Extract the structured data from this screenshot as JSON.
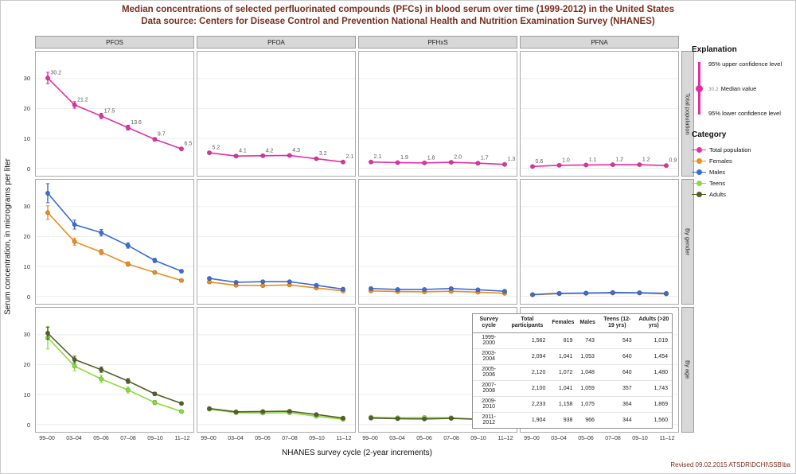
{
  "axes": {
    "y_label": "Serum concentration, in micrograms per liter",
    "x_label": "NHANES survey cycle (2-year increments)"
  },
  "footer": {
    "revised": "Revised 09.02.2015  ATSDR\\DCHI\\SSB\\ba"
  },
  "legend": {
    "title": "Explanation",
    "upper": "95% upper confidence level",
    "median": "Median value",
    "lower": "95% lower confidence level",
    "sample_value": "30.2",
    "category_title": "Category",
    "categories": [
      {
        "key": "total",
        "label": "Total population"
      },
      {
        "key": "females",
        "label": "Females"
      },
      {
        "key": "males",
        "label": "Males"
      },
      {
        "key": "teens",
        "label": "Teens"
      },
      {
        "key": "adults",
        "label": "Adults"
      }
    ]
  },
  "table": {
    "headers": [
      "Survey cycle",
      "Total participants",
      "Females",
      "Males",
      "Teens (12-19 yrs)",
      "Adults (>20 yrs)"
    ],
    "rows": [
      [
        "1999-2000",
        "1,562",
        "819",
        "743",
        "543",
        "1,019"
      ],
      [
        "2003-2004",
        "2,094",
        "1,041",
        "1,053",
        "640",
        "1,454"
      ],
      [
        "2005-2006",
        "2,120",
        "1,072",
        "1,048",
        "640",
        "1,480"
      ],
      [
        "2007-2008",
        "2,100",
        "1,041",
        "1,059",
        "357",
        "1,743"
      ],
      [
        "2009-2010",
        "2,233",
        "1,158",
        "1,075",
        "364",
        "1,869"
      ],
      [
        "2011-2012",
        "1,904",
        "938",
        "966",
        "344",
        "1,560"
      ]
    ]
  },
  "chart_data": {
    "type": "line",
    "title": "Median concentrations of selected perfluorinated compounds (PFCs) in blood serum over time (1999-2012) in the United States",
    "subtitle": "Data source: Centers for Disease Control and Prevention National Health and Nutrition Examination Survey (NHANES)",
    "xlabel": "NHANES survey cycle (2-year increments)",
    "ylabel": "Serum concentration, in micrograms per liter",
    "x": [
      "99–00",
      "03–04",
      "05–06",
      "07–08",
      "09–10",
      "11–12"
    ],
    "columns": [
      "PFOS",
      "PFOA",
      "PFHxS",
      "PFNA"
    ],
    "rows": [
      "Total population",
      "By gender",
      "By age"
    ],
    "ylim": [
      -2.5,
      39
    ],
    "yticks": [
      0,
      10,
      20,
      30
    ],
    "grid": "faint horizontal",
    "legend_position": "right",
    "colors": {
      "total": "#e62ea3",
      "females": "#ef8d1e",
      "males": "#3b6cd7",
      "teens": "#8bdd3d",
      "adults": "#535f28"
    },
    "panels": [
      {
        "row": "Total population",
        "col": "PFOS",
        "series": [
          {
            "key": "total",
            "name": "Total population",
            "values": [
              30.2,
              21.2,
              17.5,
              13.6,
              9.7,
              6.5
            ],
            "ci": [
              1.9,
              1.1,
              0.9,
              0.8,
              0.5,
              0.4
            ],
            "labels": [
              "30.2",
              "21.2",
              "17.5",
              "13.6",
              "9.7",
              "6.5"
            ]
          }
        ]
      },
      {
        "row": "Total population",
        "col": "PFOA",
        "series": [
          {
            "key": "total",
            "name": "Total population",
            "values": [
              5.2,
              4.1,
              4.2,
              4.3,
              3.2,
              2.1
            ],
            "ci": [
              0.3,
              0.2,
              0.2,
              0.2,
              0.2,
              0.1
            ],
            "labels": [
              "5.2",
              "4.1",
              "4.2",
              "4.3",
              "3.2",
              "2.1"
            ]
          }
        ]
      },
      {
        "row": "Total population",
        "col": "PFHxS",
        "series": [
          {
            "key": "total",
            "name": "Total population",
            "values": [
              2.1,
              1.9,
              1.8,
              2.0,
              1.7,
              1.3
            ],
            "ci": [
              0.2,
              0.15,
              0.15,
              0.2,
              0.1,
              0.1
            ],
            "labels": [
              "2.1",
              "1.9",
              "1.8",
              "2.0",
              "1.7",
              "1.3"
            ]
          }
        ]
      },
      {
        "row": "Total population",
        "col": "PFNA",
        "series": [
          {
            "key": "total",
            "name": "Total population",
            "values": [
              0.6,
              1.0,
              1.1,
              1.2,
              1.2,
              0.9
            ],
            "ci": [
              0.05,
              0.1,
              0.1,
              0.1,
              0.1,
              0.05
            ],
            "labels": [
              "0.6",
              "1.0",
              "1.1",
              "1.2",
              "1.2",
              "0.9"
            ]
          }
        ]
      },
      {
        "row": "By gender",
        "col": "PFOS",
        "series": [
          {
            "key": "females",
            "name": "Females",
            "values": [
              28.0,
              18.3,
              14.8,
              10.8,
              8.0,
              5.3
            ],
            "ci": [
              2.3,
              1.2,
              0.9,
              0.7,
              0.5,
              0.3
            ]
          },
          {
            "key": "males",
            "name": "Males",
            "values": [
              34.5,
              24.0,
              21.3,
              17.0,
              12.0,
              8.4
            ],
            "ci": [
              3.2,
              1.5,
              1.1,
              0.9,
              0.7,
              0.5
            ]
          }
        ]
      },
      {
        "row": "By gender",
        "col": "PFOA",
        "series": [
          {
            "key": "females",
            "name": "Females",
            "values": [
              4.8,
              3.7,
              3.6,
              3.8,
              2.8,
              1.8
            ],
            "ci": [
              0.3,
              0.2,
              0.2,
              0.2,
              0.2,
              0.1
            ]
          },
          {
            "key": "males",
            "name": "Males",
            "values": [
              6.0,
              4.7,
              4.9,
              4.9,
              3.7,
              2.4
            ],
            "ci": [
              0.4,
              0.25,
              0.25,
              0.25,
              0.2,
              0.15
            ]
          }
        ]
      },
      {
        "row": "By gender",
        "col": "PFHxS",
        "series": [
          {
            "key": "females",
            "name": "Females",
            "values": [
              1.8,
              1.6,
              1.5,
              1.7,
              1.4,
              1.0
            ],
            "ci": [
              0.2,
              0.15,
              0.1,
              0.15,
              0.1,
              0.1
            ]
          },
          {
            "key": "males",
            "name": "Males",
            "values": [
              2.6,
              2.3,
              2.3,
              2.6,
              2.2,
              1.7
            ],
            "ci": [
              0.25,
              0.2,
              0.2,
              0.2,
              0.15,
              0.1
            ]
          }
        ]
      },
      {
        "row": "By gender",
        "col": "PFNA",
        "series": [
          {
            "key": "females",
            "name": "Females",
            "values": [
              0.5,
              0.9,
              1.0,
              1.1,
              1.1,
              0.8
            ],
            "ci": [
              0.05,
              0.1,
              0.1,
              0.1,
              0.1,
              0.05
            ]
          },
          {
            "key": "males",
            "name": "Males",
            "values": [
              0.6,
              1.0,
              1.1,
              1.3,
              1.2,
              1.0
            ],
            "ci": [
              0.05,
              0.1,
              0.1,
              0.1,
              0.1,
              0.05
            ]
          }
        ]
      },
      {
        "row": "By age",
        "col": "PFOS",
        "series": [
          {
            "key": "teens",
            "name": "Teens",
            "values": [
              29.0,
              19.5,
              15.2,
              11.5,
              7.3,
              4.3
            ],
            "ci": [
              3.8,
              1.6,
              1.2,
              1.0,
              0.7,
              0.4
            ]
          },
          {
            "key": "adults",
            "name": "Adults",
            "values": [
              30.5,
              21.7,
              18.3,
              14.5,
              10.2,
              7.0
            ],
            "ci": [
              2.0,
              1.1,
              0.9,
              0.8,
              0.5,
              0.4
            ]
          }
        ]
      },
      {
        "row": "By age",
        "col": "PFOA",
        "series": [
          {
            "key": "teens",
            "name": "Teens",
            "values": [
              5.1,
              3.9,
              3.8,
              3.9,
              2.7,
              1.7
            ],
            "ci": [
              0.3,
              0.2,
              0.2,
              0.2,
              0.2,
              0.1
            ]
          },
          {
            "key": "adults",
            "name": "Adults",
            "values": [
              5.3,
              4.2,
              4.3,
              4.4,
              3.3,
              2.1
            ],
            "ci": [
              0.3,
              0.2,
              0.2,
              0.2,
              0.2,
              0.1
            ]
          }
        ]
      },
      {
        "row": "By age",
        "col": "PFHxS",
        "series": [
          {
            "key": "teens",
            "name": "Teens",
            "values": [
              2.4,
              2.2,
              2.3,
              2.2,
              1.7,
              1.3
            ],
            "ci": [
              0.3,
              0.2,
              0.2,
              0.2,
              0.15,
              0.1
            ]
          },
          {
            "key": "adults",
            "name": "Adults",
            "values": [
              2.1,
              1.9,
              1.8,
              2.0,
              1.7,
              1.4
            ],
            "ci": [
              0.2,
              0.15,
              0.15,
              0.15,
              0.1,
              0.1
            ]
          }
        ]
      },
      {
        "row": "By age",
        "col": "PFNA",
        "series": [
          {
            "key": "teens",
            "name": "Teens",
            "values": [
              0.5,
              0.9,
              1.0,
              1.0,
              1.0,
              0.7
            ],
            "ci": [
              0.05,
              0.1,
              0.1,
              0.1,
              0.1,
              0.05
            ]
          },
          {
            "key": "adults",
            "name": "Adults",
            "values": [
              0.6,
              1.0,
              1.1,
              1.2,
              1.2,
              0.9
            ],
            "ci": [
              0.05,
              0.1,
              0.1,
              0.1,
              0.1,
              0.05
            ]
          }
        ]
      }
    ]
  }
}
